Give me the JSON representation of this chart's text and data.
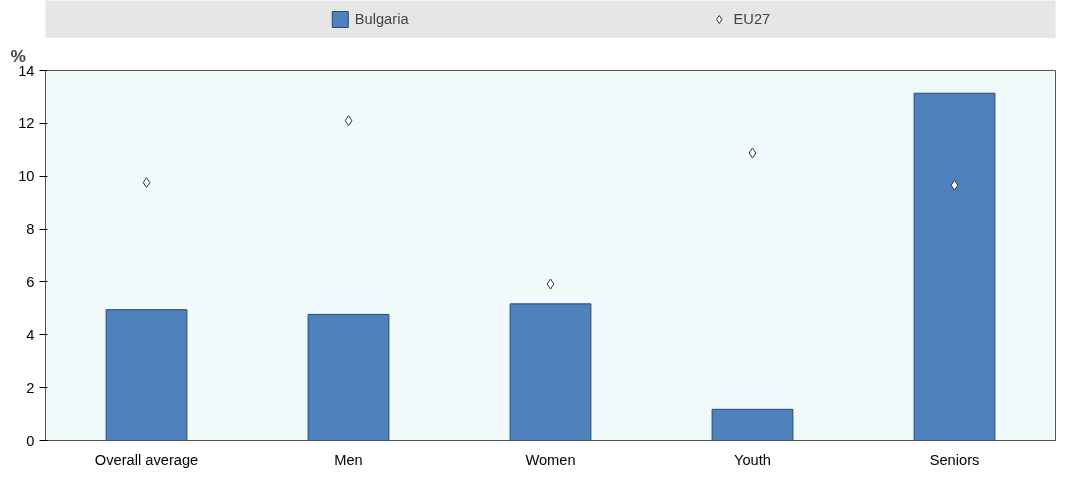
{
  "chart_data": {
    "type": "bar",
    "ylabel": "%",
    "categories": [
      "Overall average",
      "Men",
      "Women",
      "Youth",
      "Seniors"
    ],
    "series": [
      {
        "name": "Bulgaria",
        "color": "#4f81bd",
        "values": [
          4.95,
          4.77,
          5.17,
          1.18,
          13.14
        ]
      },
      {
        "name": "EU27",
        "type": "scatter",
        "marker": "diamond",
        "color": "#ffffff",
        "values": [
          9.76,
          12.1,
          5.92,
          10.88,
          9.66
        ]
      }
    ],
    "ylim": [
      0,
      14
    ],
    "yticks": [
      0,
      2,
      4,
      6,
      8,
      10,
      12,
      14
    ],
    "grid": false,
    "legend": "top"
  }
}
